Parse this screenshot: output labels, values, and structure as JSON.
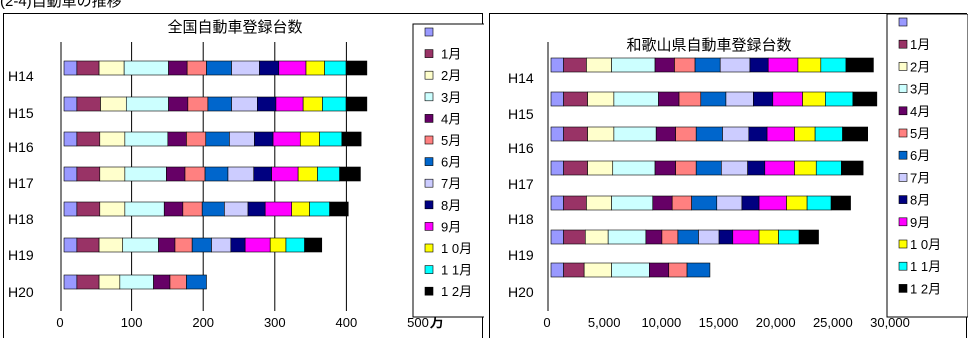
{
  "page": {
    "top_caption": "(2-4)自動車の推移"
  },
  "chart_data": [
    {
      "type": "bar",
      "stacked": true,
      "orientation": "horizontal",
      "title": "全国自動車登録台数",
      "categories": [
        "H14",
        "H15",
        "H16",
        "H17",
        "H18",
        "H19",
        "H20"
      ],
      "xticks": [
        "0",
        "100",
        "200",
        "300",
        "400",
        "500"
      ],
      "unit": "万",
      "xlim": [
        0,
        500
      ],
      "grid": "vertical",
      "legend_position": "right",
      "series": [
        {
          "name": "1月",
          "values": [
            31,
            33,
            32,
            32,
            32,
            31,
            31
          ]
        },
        {
          "name": "2月",
          "values": [
            35,
            36,
            35,
            35,
            35,
            33,
            29
          ]
        },
        {
          "name": "3月",
          "values": [
            62,
            59,
            60,
            58,
            55,
            50,
            47
          ]
        },
        {
          "name": "4月",
          "values": [
            26,
            27,
            26,
            26,
            26,
            23,
            23
          ]
        },
        {
          "name": "5月",
          "values": [
            27,
            28,
            27,
            28,
            27,
            24,
            23
          ]
        },
        {
          "name": "6月",
          "values": [
            35,
            33,
            33,
            32,
            31,
            27,
            28
          ]
        },
        {
          "name": "7月",
          "values": [
            39,
            36,
            35,
            36,
            33,
            27,
            0
          ]
        },
        {
          "name": "8月",
          "values": [
            27,
            26,
            26,
            25,
            24,
            20,
            0
          ]
        },
        {
          "name": "9月",
          "values": [
            38,
            38,
            38,
            37,
            37,
            35,
            0
          ]
        },
        {
          "name": "10月",
          "values": [
            26,
            27,
            27,
            27,
            25,
            22,
            0
          ]
        },
        {
          "name": "11月",
          "values": [
            30,
            33,
            31,
            31,
            28,
            26,
            0
          ]
        },
        {
          "name": "12月",
          "values": [
            29,
            29,
            27,
            29,
            26,
            24,
            0
          ]
        }
      ]
    },
    {
      "type": "bar",
      "stacked": true,
      "orientation": "horizontal",
      "title": "和歌山県自動車登録台数",
      "categories": [
        "H14",
        "H15",
        "H16",
        "H17",
        "H18",
        "H19",
        "H20"
      ],
      "xticks": [
        "0",
        "5,000",
        "10,000",
        "15,000",
        "20,000",
        "25,000",
        "30,000"
      ],
      "xlim": [
        0,
        30000
      ],
      "grid": "none",
      "legend_position": "right",
      "series": [
        {
          "name": "1月",
          "values": [
            2000,
            2100,
            2100,
            2100,
            2000,
            1900,
            1800
          ]
        },
        {
          "name": "2月",
          "values": [
            2200,
            2300,
            2300,
            2200,
            2200,
            2000,
            2400
          ]
        },
        {
          "name": "3月",
          "values": [
            3800,
            3900,
            3700,
            3700,
            3600,
            3300,
            3300
          ]
        },
        {
          "name": "4月",
          "values": [
            1700,
            1800,
            1700,
            1800,
            1700,
            1400,
            1700
          ]
        },
        {
          "name": "5月",
          "values": [
            1800,
            1900,
            1800,
            1800,
            1700,
            1400,
            1600
          ]
        },
        {
          "name": "6月",
          "values": [
            2200,
            2200,
            2300,
            2200,
            2200,
            1800,
            2000
          ]
        },
        {
          "name": "7月",
          "values": [
            2600,
            2400,
            2300,
            2300,
            2200,
            1800,
            0
          ]
        },
        {
          "name": "8月",
          "values": [
            1600,
            1700,
            1600,
            1500,
            1500,
            1200,
            0
          ]
        },
        {
          "name": "9月",
          "values": [
            2600,
            2600,
            2400,
            2600,
            2400,
            2300,
            0
          ]
        },
        {
          "name": "10月",
          "values": [
            2000,
            2000,
            1800,
            1900,
            1800,
            1700,
            0
          ]
        },
        {
          "name": "11月",
          "values": [
            2200,
            2400,
            2400,
            2200,
            2100,
            1800,
            0
          ]
        },
        {
          "name": "12月",
          "values": [
            2400,
            2100,
            2200,
            1900,
            1700,
            1700,
            0
          ]
        }
      ]
    }
  ],
  "colors": [
    "#9999FF",
    "#993366",
    "#FFFFCC",
    "#CCFFFF",
    "#660066",
    "#FF8080",
    "#0066CC",
    "#CCCCFF",
    "#000080",
    "#FF00FF",
    "#FFFF00",
    "#00FFFF"
  ],
  "legend_labels": [
    "",
    "1月",
    "2月",
    "3月",
    "4月",
    "5月",
    "6月",
    "7月",
    "8月",
    "9月",
    "1 0月",
    "1 1月",
    "1 2月"
  ]
}
